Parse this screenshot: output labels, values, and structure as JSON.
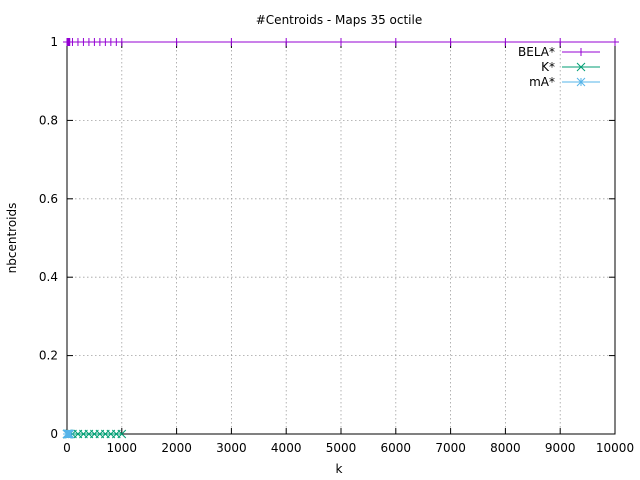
{
  "chart_data": {
    "type": "line",
    "title": "#Centroids - Maps 35 octile",
    "xlabel": "k",
    "ylabel": "nbcentroids",
    "xlim": [
      0,
      10000
    ],
    "ylim": [
      0,
      1
    ],
    "x_ticks": [
      "0",
      "1000",
      "2000",
      "3000",
      "4000",
      "5000",
      "6000",
      "7000",
      "8000",
      "9000",
      "10000"
    ],
    "y_ticks": [
      "0",
      "0.2",
      "0.4",
      "0.6",
      "0.8",
      "1"
    ],
    "grid": true,
    "legend_position": "top-right",
    "series": [
      {
        "name": "BELA*",
        "color": "#9400d3",
        "marker": "plus",
        "x": [
          1,
          2,
          3,
          4,
          5,
          10,
          20,
          30,
          40,
          50,
          100,
          200,
          300,
          400,
          500,
          600,
          700,
          800,
          900,
          1000,
          2000,
          3000,
          4000,
          5000,
          6000,
          7000,
          8000,
          9000,
          10000
        ],
        "y": [
          1,
          1,
          1,
          1,
          1,
          1,
          1,
          1,
          1,
          1,
          1,
          1,
          1,
          1,
          1,
          1,
          1,
          1,
          1,
          1,
          1,
          1,
          1,
          1,
          1,
          1,
          1,
          1,
          1
        ]
      },
      {
        "name": "K*",
        "color": "#009e73",
        "marker": "cross",
        "x": [
          1,
          2,
          3,
          4,
          5,
          10,
          20,
          30,
          40,
          50,
          100,
          200,
          300,
          400,
          500,
          600,
          700,
          800,
          900,
          1000
        ],
        "y": [
          0,
          0,
          0,
          0,
          0,
          0,
          0,
          0,
          0,
          0,
          0,
          0,
          0,
          0,
          0,
          0,
          0,
          0,
          0,
          0
        ]
      },
      {
        "name": "mA*",
        "color": "#56b4e9",
        "marker": "star",
        "x": [
          1,
          2,
          3,
          4,
          5,
          10,
          20,
          30,
          40,
          50
        ],
        "y": [
          0,
          0,
          0,
          0,
          0,
          0,
          0,
          0,
          0,
          0
        ]
      }
    ]
  }
}
